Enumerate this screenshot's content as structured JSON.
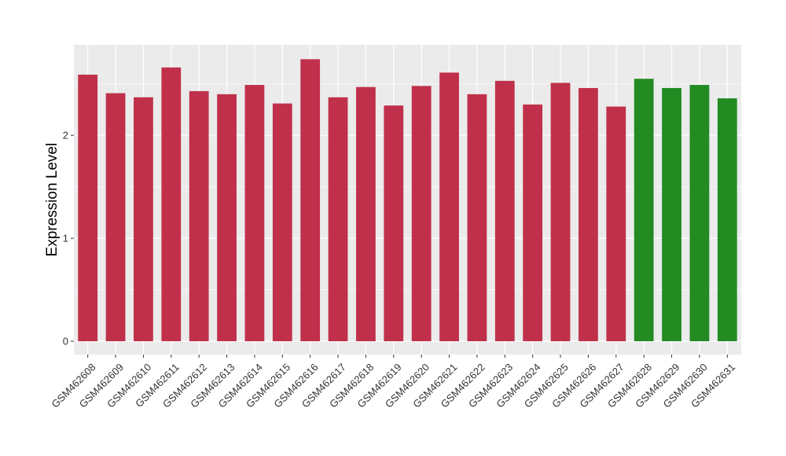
{
  "chart_data": {
    "type": "bar",
    "title": "",
    "xlabel": "",
    "ylabel": "Expression Level",
    "ylim": [
      -0.13,
      2.88
    ],
    "yticks": [
      0,
      1,
      2
    ],
    "grid": true,
    "legend": "none",
    "categories": [
      "GSM462608",
      "GSM462609",
      "GSM462610",
      "GSM462611",
      "GSM462612",
      "GSM462613",
      "GSM462614",
      "GSM462615",
      "GSM462616",
      "GSM462617",
      "GSM462618",
      "GSM462619",
      "GSM462620",
      "GSM462621",
      "GSM462622",
      "GSM462623",
      "GSM462624",
      "GSM462625",
      "GSM462626",
      "GSM462627",
      "GSM462628",
      "GSM462629",
      "GSM462630",
      "GSM462631"
    ],
    "values": [
      2.59,
      2.41,
      2.37,
      2.66,
      2.43,
      2.4,
      2.49,
      2.31,
      2.74,
      2.37,
      2.47,
      2.29,
      2.48,
      2.61,
      2.4,
      2.53,
      2.3,
      2.51,
      2.46,
      2.28,
      2.55,
      2.46,
      2.49,
      2.36
    ],
    "colors": [
      "#c0304a",
      "#c0304a",
      "#c0304a",
      "#c0304a",
      "#c0304a",
      "#c0304a",
      "#c0304a",
      "#c0304a",
      "#c0304a",
      "#c0304a",
      "#c0304a",
      "#c0304a",
      "#c0304a",
      "#c0304a",
      "#c0304a",
      "#c0304a",
      "#c0304a",
      "#c0304a",
      "#c0304a",
      "#c0304a",
      "#228b22",
      "#228b22",
      "#228b22",
      "#228b22"
    ],
    "panel_background": "#ebebeb",
    "grid_color": "#ffffff"
  }
}
